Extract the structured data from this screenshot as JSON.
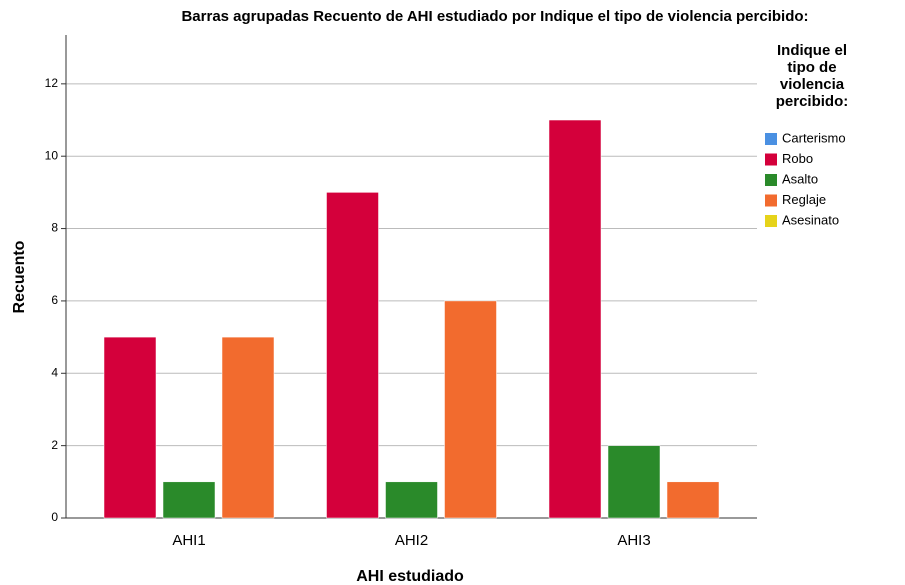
{
  "chart_data": {
    "type": "bar",
    "title": "Barras agrupadas Recuento de AHI estudiado por Indique el tipo de violencia percibido:",
    "x_label": "AHI estudiado",
    "y_label": "Recuento",
    "legend_title": "Indique el tipo de violencia percibido:",
    "legend_position": "right",
    "categories": [
      "AHI1",
      "AHI2",
      "AHI3"
    ],
    "series": [
      {
        "name": "Carterismo",
        "color": "#4a90e2",
        "values": [
          null,
          null,
          null
        ]
      },
      {
        "name": "Robo",
        "color": "#d4003b",
        "values": [
          5,
          9,
          11
        ]
      },
      {
        "name": "Asalto",
        "color": "#2a8a2a",
        "values": [
          1,
          1,
          2
        ]
      },
      {
        "name": "Reglaje",
        "color": "#f26b2e",
        "values": [
          5,
          6,
          1
        ]
      },
      {
        "name": "Asesinato",
        "color": "#e6d31a",
        "values": [
          null,
          null,
          null
        ]
      }
    ],
    "ylim": [
      0,
      13.35
    ],
    "yticks": [
      0,
      2,
      4,
      6,
      8,
      10,
      12
    ],
    "grid": true
  }
}
